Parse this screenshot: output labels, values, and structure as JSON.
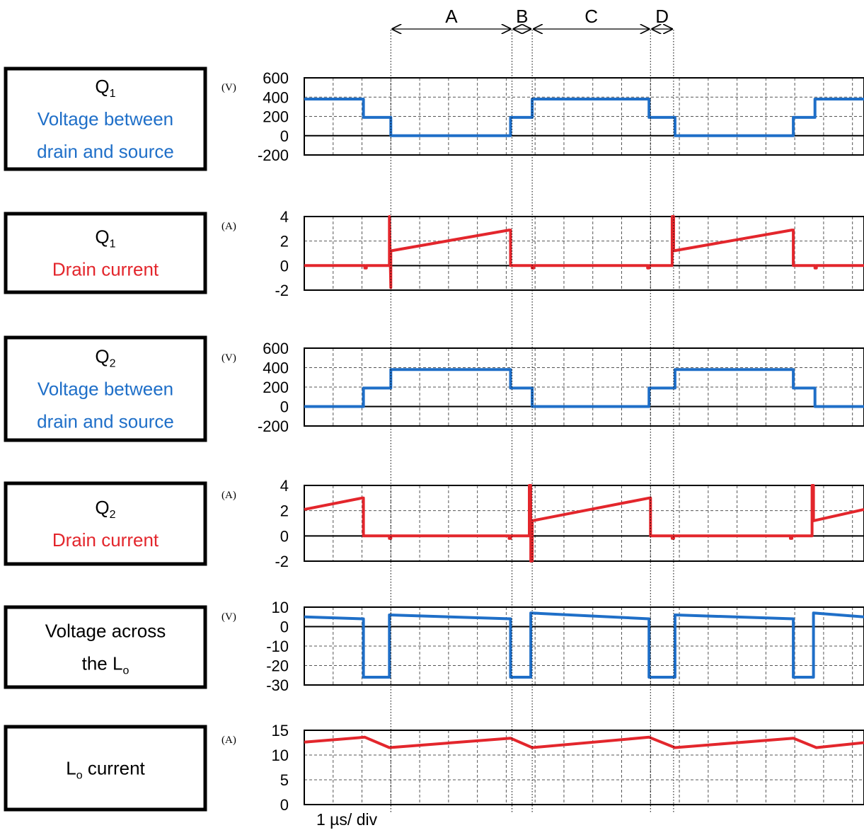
{
  "colors": {
    "voltage": "#1f6fc8",
    "current": "#e3262c",
    "frame": "#000000",
    "grid": "#555555"
  },
  "intervals": [
    {
      "label": "A",
      "start": 3.0,
      "end": 7.2
    },
    {
      "label": "B",
      "start": 7.2,
      "end": 7.9
    },
    {
      "label": "C",
      "start": 7.9,
      "end": 12.0
    },
    {
      "label": "D",
      "start": 12.0,
      "end": 12.8
    }
  ],
  "timebase": "1 µs/ div",
  "chart_data": [
    {
      "type": "line",
      "label_lines": [
        {
          "text": "Q",
          "sub": "1",
          "color": "#000000"
        },
        {
          "text": "Voltage between",
          "color": "#1f6fc8"
        },
        {
          "text": "drain and source",
          "color": "#1f6fc8"
        }
      ],
      "unit": "(V)",
      "ylim": [
        -200,
        600
      ],
      "yticks": [
        "600",
        "400",
        "200",
        "0",
        "-200"
      ],
      "ytick_values": [
        600,
        400,
        200,
        0,
        -200
      ],
      "zero": 0,
      "grid": true,
      "series": [
        {
          "color": "#1f6fc8",
          "x": [
            0,
            2.05,
            2.05,
            3.0,
            3.0,
            7.15,
            7.15,
            7.9,
            7.9,
            11.95,
            11.95,
            12.85,
            12.85,
            16.95,
            16.95,
            17.7,
            17.7,
            19.4
          ],
          "y": [
            380,
            380,
            190,
            190,
            0,
            0,
            190,
            190,
            380,
            380,
            190,
            190,
            0,
            0,
            190,
            190,
            380,
            380
          ]
        }
      ]
    },
    {
      "type": "line",
      "label_lines": [
        {
          "text": "Q",
          "sub": "1",
          "color": "#000000"
        },
        {
          "text": "Drain current",
          "color": "#e3262c"
        }
      ],
      "unit": "(A)",
      "ylim": [
        -2,
        4
      ],
      "yticks": [
        "4",
        "2",
        "0",
        "-2"
      ],
      "ytick_values": [
        4,
        2,
        0,
        -2
      ],
      "zero": 0,
      "grid": true,
      "series": [
        {
          "color": "#e3262c",
          "x": [
            0,
            2.1,
            2.1,
            2.15,
            2.15,
            2.95,
            2.95,
            3.0,
            3.0,
            7.1,
            7.15,
            7.15,
            7.9,
            7.9,
            7.95,
            7.95,
            11.9,
            11.9,
            11.95,
            11.95,
            12.75,
            12.75,
            12.8,
            12.8,
            16.9,
            16.95,
            16.95,
            17.7,
            17.7,
            17.75,
            17.75,
            19.4
          ],
          "y": [
            0,
            0,
            -0.2,
            -0.2,
            0,
            0,
            4.0,
            -1.8,
            1.2,
            2.9,
            2.9,
            0,
            0,
            -0.2,
            -0.2,
            0,
            0,
            -0.2,
            -0.2,
            0,
            0,
            4.0,
            4.0,
            1.2,
            2.9,
            2.9,
            0,
            0,
            -0.2,
            -0.2,
            0,
            0
          ]
        }
      ]
    },
    {
      "type": "line",
      "label_lines": [
        {
          "text": "Q",
          "sub": "2",
          "color": "#000000"
        },
        {
          "text": "Voltage between",
          "color": "#1f6fc8"
        },
        {
          "text": "drain and source",
          "color": "#1f6fc8"
        }
      ],
      "unit": "(V)",
      "ylim": [
        -200,
        600
      ],
      "yticks": [
        "600",
        "400",
        "200",
        "0",
        "-200"
      ],
      "ytick_values": [
        600,
        400,
        200,
        0,
        -200
      ],
      "zero": 0,
      "grid": true,
      "series": [
        {
          "color": "#1f6fc8",
          "x": [
            0,
            2.05,
            2.05,
            3.0,
            3.0,
            7.15,
            7.15,
            7.9,
            7.9,
            11.95,
            11.95,
            12.85,
            12.85,
            16.95,
            16.95,
            17.7,
            17.7,
            19.4
          ],
          "y": [
            0,
            0,
            190,
            190,
            380,
            380,
            190,
            190,
            0,
            0,
            190,
            190,
            380,
            380,
            190,
            190,
            0,
            0
          ]
        }
      ]
    },
    {
      "type": "line",
      "label_lines": [
        {
          "text": "Q",
          "sub": "2",
          "color": "#000000"
        },
        {
          "text": "Drain current",
          "color": "#e3262c"
        }
      ],
      "unit": "(A)",
      "ylim": [
        -2,
        4
      ],
      "yticks": [
        "4",
        "2",
        "0",
        "-2"
      ],
      "ytick_values": [
        4,
        2,
        0,
        -2
      ],
      "zero": 0,
      "grid": true,
      "series": [
        {
          "color": "#e3262c",
          "x": [
            0,
            2.0,
            2.05,
            2.05,
            2.95,
            2.95,
            3.0,
            3.0,
            7.1,
            7.1,
            7.15,
            7.15,
            7.8,
            7.8,
            7.85,
            7.85,
            7.9,
            7.9,
            11.95,
            12.0,
            12.0,
            12.75,
            12.75,
            12.8,
            12.8,
            16.85,
            16.85,
            16.9,
            16.9,
            17.6,
            17.6,
            17.65,
            17.65,
            19.4
          ],
          "y": [
            2.1,
            3.0,
            3.0,
            0,
            0,
            -0.2,
            -0.2,
            0,
            0,
            -0.2,
            -0.2,
            0,
            0,
            4.0,
            4.0,
            -2.0,
            -2.0,
            1.2,
            3.0,
            3.0,
            0,
            0,
            -0.2,
            -0.2,
            0,
            0,
            -0.2,
            -0.2,
            0,
            0,
            4.0,
            4.0,
            1.2,
            2.1
          ]
        }
      ]
    },
    {
      "type": "line",
      "label_lines": [
        {
          "text": "Voltage across",
          "color": "#000000"
        },
        {
          "text": "the L",
          "sub": "o",
          "color": "#000000"
        }
      ],
      "unit": "(V)",
      "ylim": [
        -30,
        10
      ],
      "yticks": [
        "10",
        "0",
        "-10",
        "-20",
        "-30"
      ],
      "ytick_values": [
        10,
        0,
        -10,
        -20,
        -30
      ],
      "zero": 0,
      "grid": true,
      "series": [
        {
          "color": "#1f6fc8",
          "x": [
            0,
            2.05,
            2.05,
            2.95,
            2.95,
            7.15,
            7.15,
            7.85,
            7.85,
            11.95,
            11.95,
            12.85,
            12.85,
            16.95,
            16.95,
            17.65,
            17.65,
            19.4
          ],
          "y": [
            5,
            4,
            -26,
            -26,
            6,
            4,
            -26,
            -26,
            7,
            4,
            -26,
            -26,
            6,
            4,
            -26,
            -26,
            7,
            5
          ]
        }
      ]
    },
    {
      "type": "line",
      "label_lines": [
        {
          "text": "L",
          "sub": "o",
          "tail": " current",
          "color": "#000000"
        }
      ],
      "unit": "(A)",
      "ylim": [
        0,
        15
      ],
      "yticks": [
        "15",
        "10",
        "5",
        "0"
      ],
      "ytick_values": [
        15,
        10,
        5,
        0
      ],
      "zero": 0,
      "grid": true,
      "series": [
        {
          "color": "#e3262c",
          "x": [
            0,
            2.1,
            2.95,
            7.15,
            7.9,
            11.95,
            12.85,
            16.95,
            17.75,
            19.4
          ],
          "y": [
            12.6,
            13.6,
            11.5,
            13.4,
            11.5,
            13.6,
            11.5,
            13.4,
            11.5,
            12.5
          ]
        }
      ]
    }
  ]
}
